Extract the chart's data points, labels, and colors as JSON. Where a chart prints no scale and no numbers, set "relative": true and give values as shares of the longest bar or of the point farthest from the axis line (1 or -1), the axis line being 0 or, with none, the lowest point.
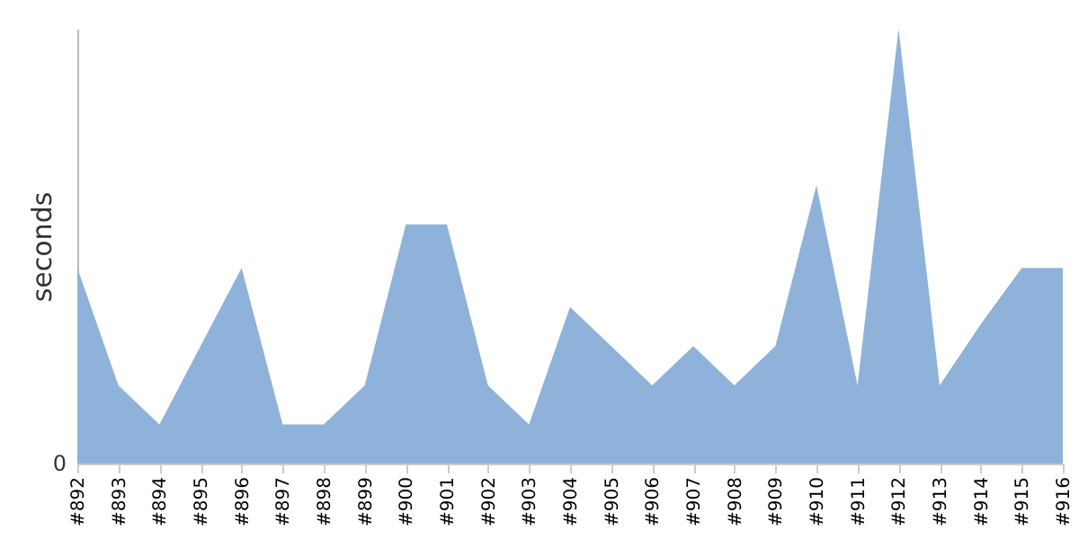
{
  "chart_data": {
    "type": "area",
    "ylabel": "seconds",
    "relative": true,
    "categories": [
      "#892",
      "#893",
      "#894",
      "#895",
      "#896",
      "#897",
      "#898",
      "#899",
      "#900",
      "#901",
      "#902",
      "#903",
      "#904",
      "#905",
      "#906",
      "#907",
      "#908",
      "#909",
      "#910",
      "#911",
      "#912",
      "#913",
      "#914",
      "#915",
      "#916"
    ],
    "values": [
      0.45,
      0.18,
      0.09,
      0.27,
      0.45,
      0.09,
      0.09,
      0.18,
      0.55,
      0.55,
      0.18,
      0.09,
      0.36,
      0.27,
      0.18,
      0.27,
      0.18,
      0.27,
      0.64,
      0.18,
      1,
      0.18,
      0.32,
      0.45,
      0.45
    ],
    "color": "#8fb2db",
    "annotations": [
      "0"
    ]
  }
}
